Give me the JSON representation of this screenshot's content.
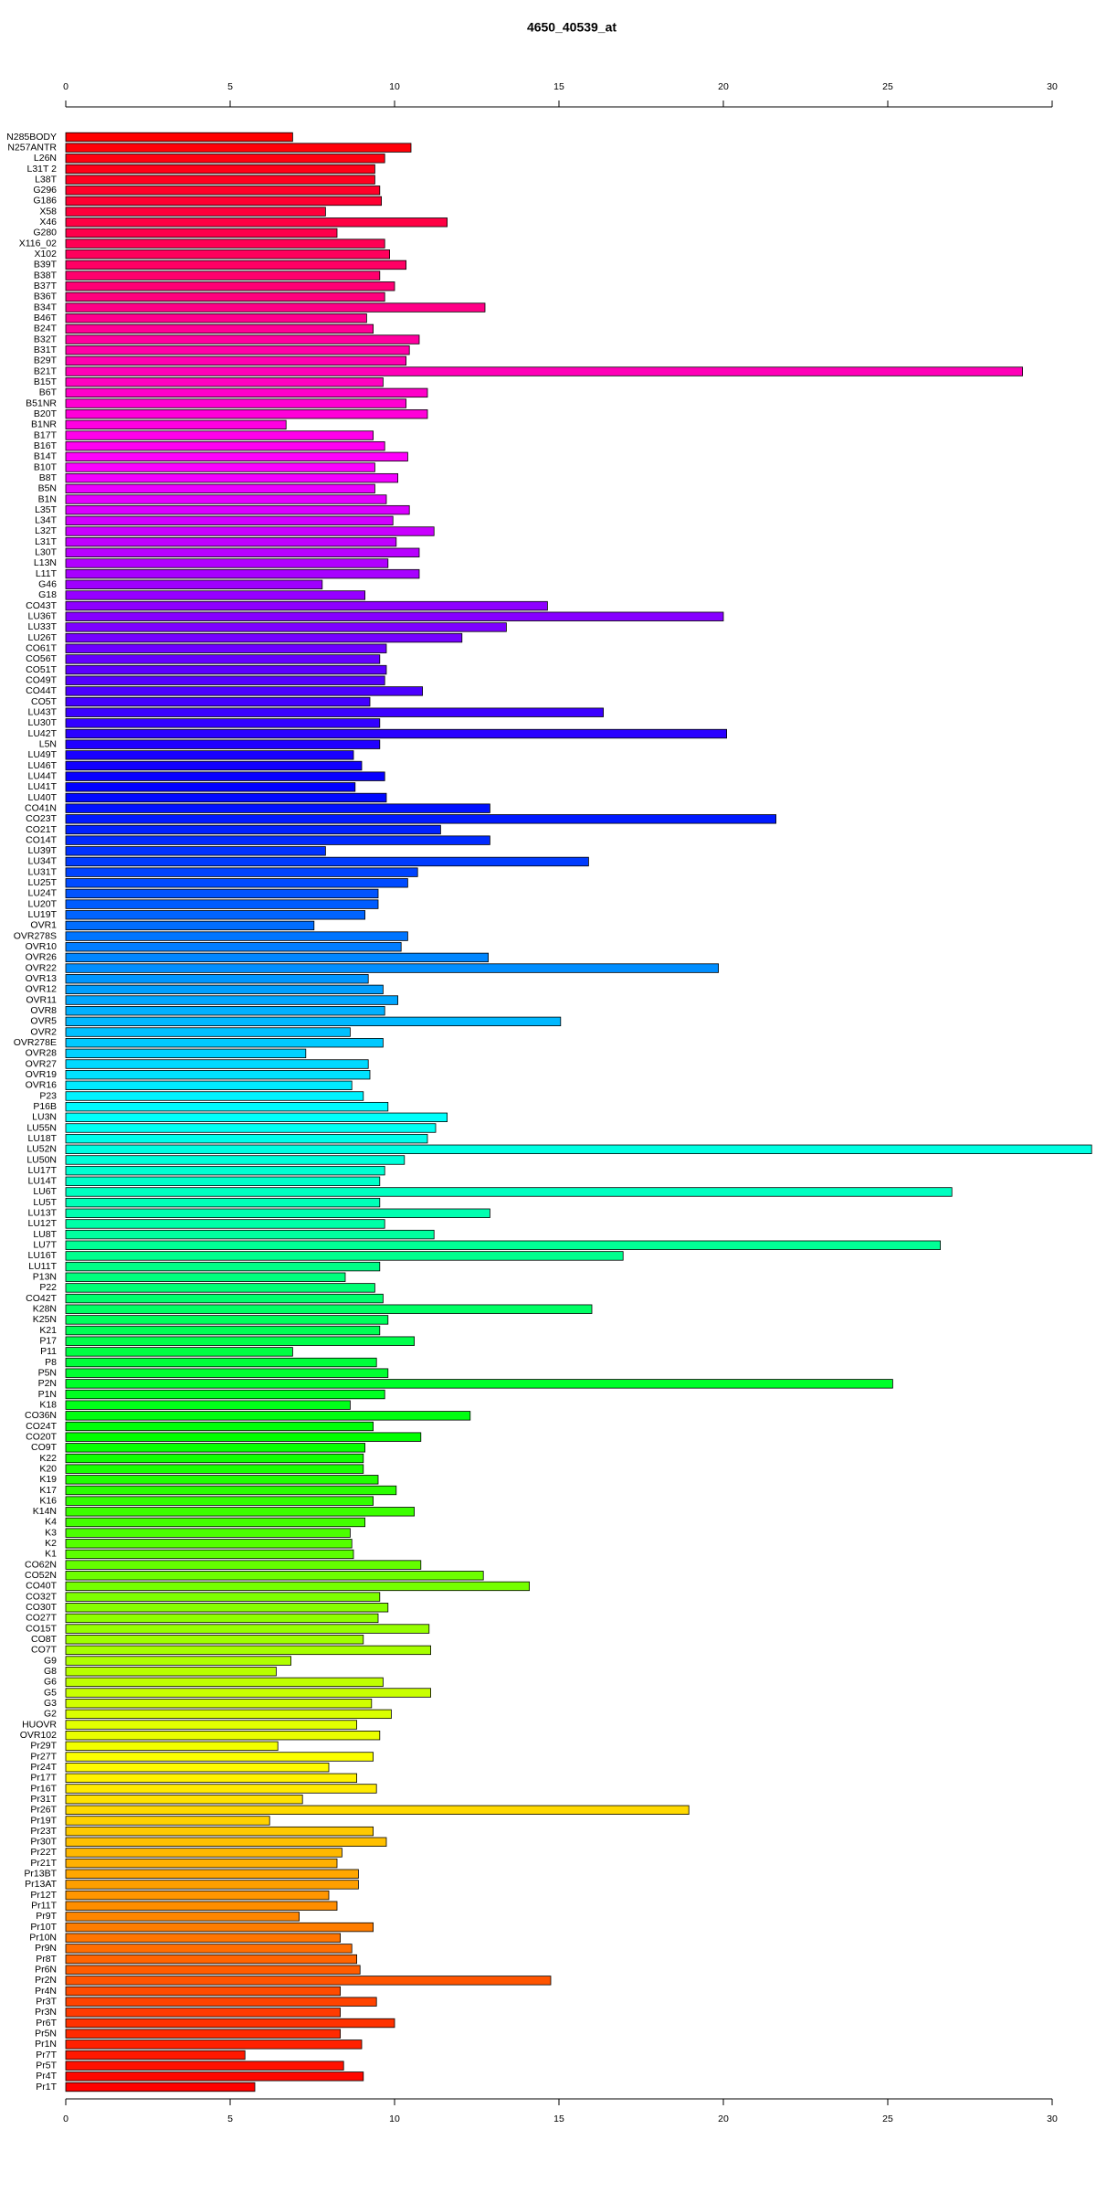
{
  "chart_data": {
    "type": "barh",
    "title": "4650_40539_at",
    "categories": [
      "N285BODY",
      "N257ANTR",
      "L26N",
      "L31T 2",
      "L38T",
      "G296",
      "G186",
      "X58",
      "X46",
      "G280",
      "X116_02",
      "X102",
      "B39T",
      "B38T",
      "B37T",
      "B36T",
      "B34T",
      "B46T",
      "B24T",
      "B32T",
      "B31T",
      "B29T",
      "B21T",
      "B15T",
      "B6T",
      "B51NR",
      "B20T",
      "B1NR",
      "B17T",
      "B16T",
      "B14T",
      "B10T",
      "B8T",
      "B5N",
      "B1N",
      "L35T",
      "L34T",
      "L32T",
      "L31T",
      "L30T",
      "L13N",
      "L11T",
      "G46",
      "G18",
      "CO43T",
      "LU36T",
      "LU33T",
      "LU26T",
      "CO61T",
      "CO56T",
      "CO51T",
      "CO49T",
      "CO44T",
      "CO5T",
      "LU43T",
      "LU30T",
      "LU42T",
      "L5N",
      "LU49T",
      "LU46T",
      "LU44T",
      "LU41T",
      "LU40T",
      "CO41N",
      "CO23T",
      "CO21T",
      "CO14T",
      "LU39T",
      "LU34T",
      "LU31T",
      "LU25T",
      "LU24T",
      "LU20T",
      "LU19T",
      "OVR1",
      "OVR278S",
      "OVR10",
      "OVR26",
      "OVR22",
      "OVR13",
      "OVR12",
      "OVR11",
      "OVR8",
      "OVR5",
      "OVR2",
      "OVR278E",
      "OVR28",
      "OVR27",
      "OVR19",
      "OVR16",
      "P23",
      "P16B",
      "LU3N",
      "LU55N",
      "LU18T",
      "LU52N",
      "LU50N",
      "LU17T",
      "LU14T",
      "LU6T",
      "LU5T",
      "LU13T",
      "LU12T",
      "LU8T",
      "LU7T",
      "LU16T",
      "LU11T",
      "P13N",
      "P22",
      "CO42T",
      "K28N",
      "K25N",
      "K21",
      "P17",
      "P11",
      "P8",
      "P5N",
      "P2N",
      "P1N",
      "K18",
      "CO36N",
      "CO24T",
      "CO20T",
      "CO9T",
      "K22",
      "K20",
      "K19",
      "K17",
      "K16",
      "K14N",
      "K4",
      "K3",
      "K2",
      "K1",
      "CO62N",
      "CO52N",
      "CO40T",
      "CO32T",
      "CO30T",
      "CO27T",
      "CO15T",
      "CO8T",
      "CO7T",
      "G9",
      "G8",
      "G6",
      "G5",
      "G3",
      "G2",
      "HUOVR",
      "OVR102",
      "Pr29T",
      "Pr27T",
      "Pr24T",
      "Pr17T",
      "Pr16T",
      "Pr31T",
      "Pr26T",
      "Pr19T",
      "Pr23T",
      "Pr30T",
      "Pr22T",
      "Pr21T",
      "Pr13BT",
      "Pr13AT",
      "Pr12T",
      "Pr11T",
      "Pr9T",
      "Pr10T",
      "Pr10N",
      "Pr9N",
      "Pr8T",
      "Pr6N",
      "Pr2N",
      "Pr4N",
      "Pr3T",
      "Pr3N",
      "Pr6T",
      "Pr5N",
      "Pr1N",
      "Pr7T",
      "Pr5T",
      "Pr4T",
      "Pr1T"
    ],
    "values": [
      6.9,
      10.5,
      9.7,
      9.4,
      9.4,
      9.55,
      9.6,
      7.9,
      11.6,
      8.25,
      9.7,
      9.85,
      10.35,
      9.55,
      10.0,
      9.7,
      12.75,
      9.15,
      9.35,
      10.75,
      10.45,
      10.35,
      29.1,
      9.65,
      11.0,
      10.35,
      11.0,
      6.7,
      9.35,
      9.7,
      10.4,
      9.4,
      10.1,
      9.4,
      9.75,
      10.45,
      9.95,
      11.2,
      10.05,
      10.75,
      9.8,
      10.75,
      7.8,
      9.1,
      14.65,
      20.0,
      13.4,
      12.05,
      9.75,
      9.55,
      9.75,
      9.7,
      10.85,
      9.25,
      16.35,
      9.55,
      20.1,
      9.55,
      8.75,
      9.0,
      9.7,
      8.8,
      9.75,
      12.9,
      21.6,
      11.4,
      12.9,
      7.9,
      15.9,
      10.7,
      10.4,
      9.5,
      9.5,
      9.1,
      7.55,
      10.4,
      10.2,
      12.85,
      19.85,
      9.2,
      9.65,
      10.1,
      9.7,
      15.05,
      8.65,
      9.65,
      7.3,
      9.2,
      9.25,
      8.7,
      9.05,
      9.8,
      11.6,
      11.25,
      11.0,
      31.2,
      10.3,
      9.7,
      9.55,
      26.95,
      9.55,
      12.9,
      9.7,
      11.2,
      26.6,
      16.95,
      9.55,
      8.5,
      9.4,
      9.65,
      16.0,
      9.8,
      9.55,
      10.6,
      6.9,
      9.45,
      9.8,
      25.15,
      9.7,
      8.65,
      12.3,
      9.35,
      10.8,
      9.1,
      9.05,
      9.05,
      9.5,
      10.05,
      9.35,
      10.6,
      9.1,
      8.65,
      8.7,
      8.75,
      10.8,
      12.7,
      14.1,
      9.55,
      9.8,
      9.5,
      11.05,
      9.05,
      11.1,
      6.85,
      6.4,
      9.65,
      11.1,
      9.3,
      9.9,
      8.85,
      9.55,
      6.45,
      9.35,
      8.0,
      8.85,
      9.45,
      7.2,
      18.95,
      6.2,
      9.35,
      9.75,
      8.4,
      8.25,
      8.9,
      8.9,
      8.0,
      8.25,
      7.1,
      9.35,
      8.35,
      8.7,
      8.85,
      8.95,
      14.75,
      8.35,
      9.45,
      8.35,
      10.0,
      8.35,
      9.0,
      5.45,
      8.45,
      9.05,
      5.75
    ],
    "color_gradient": [
      "#ff0000",
      "#ff00ff",
      "#0000ff",
      "#00ffff",
      "#00ff00",
      "#ffff00",
      "#ff0000"
    ],
    "xlim": [
      0,
      30
    ],
    "xticks": [
      0,
      5,
      10,
      15,
      20,
      25,
      30
    ],
    "grid": false
  }
}
